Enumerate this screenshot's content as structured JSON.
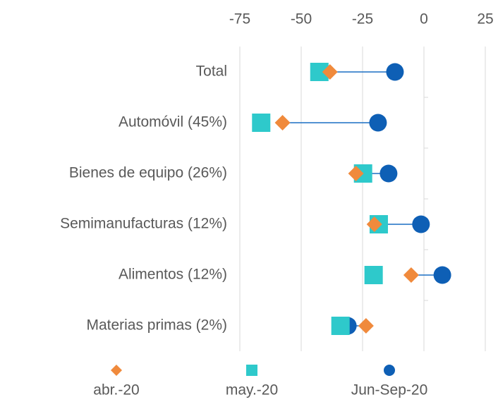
{
  "chart_data": {
    "type": "dot",
    "categories": [
      "Total",
      "Automóvil (45%)",
      "Bienes de equipo (26%)",
      "Semimanufacturas (12%)",
      "Alimentos (12%)",
      "Materias primas (2%)"
    ],
    "series": [
      {
        "name": "abr.-20",
        "color": "#f08a3c",
        "marker": "diamond",
        "values": [
          -38.3,
          -57.6,
          -27.7,
          -20.2,
          -5.2,
          -23.6
        ]
      },
      {
        "name": "may.-20",
        "color": "#2ec9cb",
        "marker": "square",
        "values": [
          -42.6,
          -66.3,
          -24.8,
          -18.4,
          -20.5,
          -34.0
        ]
      },
      {
        "name": "Jun-Sep-20",
        "color": "#0e5fb5",
        "marker": "circle",
        "values": [
          -11.8,
          -18.7,
          -14.4,
          -1.2,
          7.5,
          -31.0
        ]
      }
    ],
    "connector_color": "#1a6fc4",
    "xlim": [
      -75,
      25
    ],
    "xticks": [
      -75,
      -50,
      -25,
      0,
      25
    ],
    "grid": true
  }
}
